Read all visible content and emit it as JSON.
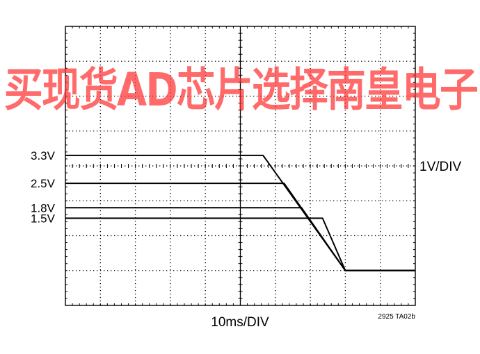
{
  "chart_data": {
    "type": "line",
    "xlabel": "10ms/DIV",
    "ylabel": "1V/DIV",
    "code": "2925 TA02b",
    "x_divisions": 10,
    "y_divisions": 8,
    "x_unit": "ms",
    "y_unit": "V",
    "xlim": [
      0,
      100
    ],
    "ylim": [
      -5.4,
      2.6
    ],
    "grid": true,
    "series": [
      {
        "name": "3.3V",
        "x": [
          0,
          56.5,
          80,
          82,
          100
        ],
        "y": [
          0,
          0,
          -3.3,
          -3.3,
          -3.3
        ]
      },
      {
        "name": "2.5V",
        "x": [
          0,
          62.5,
          80,
          82,
          100
        ],
        "y": [
          0,
          0,
          -2.5,
          -2.5,
          -2.5
        ]
      },
      {
        "name": "1.8V",
        "x": [
          0,
          67.5,
          80,
          82,
          100
        ],
        "y": [
          0,
          0,
          -1.8,
          -1.8,
          -1.8
        ]
      },
      {
        "name": "1.5V",
        "x": [
          0,
          73.5,
          80,
          82,
          100
        ],
        "y": [
          0,
          0,
          -1.5,
          -1.5,
          -1.5
        ]
      }
    ]
  },
  "watermark": "买现货AD芯片选择南皇电子"
}
